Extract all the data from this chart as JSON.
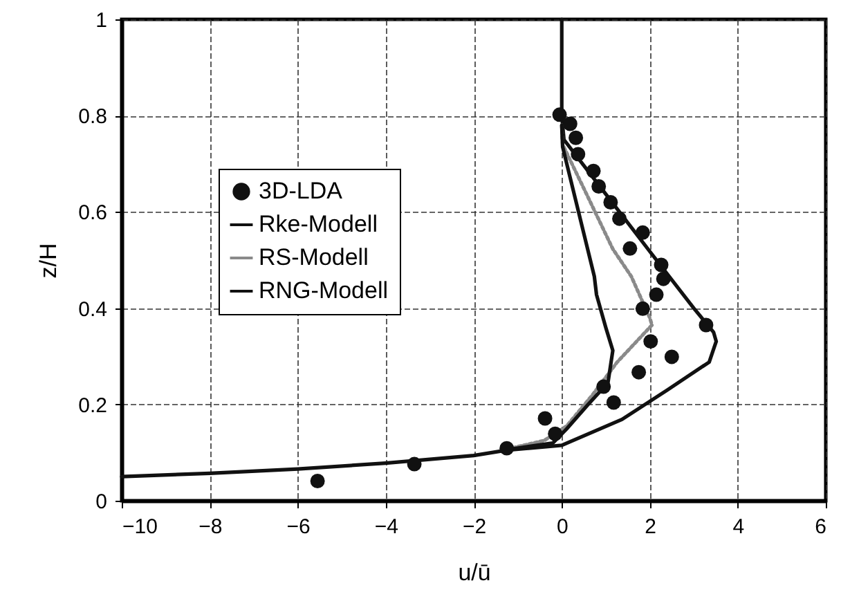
{
  "chart_data": {
    "type": "line",
    "xlabel": "u/ū",
    "ylabel": "z/H",
    "xlim": [
      -10,
      6
    ],
    "xticks": [
      -10,
      -8,
      -6,
      -4,
      -2,
      0,
      2,
      4,
      6
    ],
    "ylim": [
      0,
      1
    ],
    "yticks": [
      0,
      0.2,
      0.4,
      0.6,
      0.8,
      1
    ],
    "grid": true,
    "legend": "center left",
    "series": [
      {
        "name": "3D-LDA",
        "type": "scatter",
        "marker": "circle",
        "color": "#111111",
        "x": [
          -5.55,
          -3.35,
          -1.25,
          -0.38,
          -0.15,
          0.95,
          1.18,
          1.75,
          2.02,
          2.5,
          3.28,
          1.84,
          2.15,
          2.31,
          2.26,
          1.55,
          1.84,
          1.31,
          1.11,
          0.84,
          0.72,
          0.37,
          0.32,
          0.19,
          -0.05
        ],
        "values": [
          0.041,
          0.076,
          0.109,
          0.171,
          0.139,
          0.237,
          0.204,
          0.267,
          0.331,
          0.299,
          0.365,
          0.399,
          0.428,
          0.461,
          0.49,
          0.524,
          0.557,
          0.586,
          0.62,
          0.653,
          0.685,
          0.72,
          0.754,
          0.783,
          0.802
        ]
      },
      {
        "name": "Rke-Modell",
        "line_style": "solid",
        "color": "#111111",
        "x": [
          0,
          0,
          0.05,
          1.0,
          2.0,
          3.0,
          3.45,
          3.51,
          3.35,
          2.4,
          1.37,
          0.0,
          -1.25,
          -2,
          -4,
          -6,
          -8,
          -10
        ],
        "values": [
          1,
          0.8,
          0.75,
          0.637,
          0.518,
          0.4,
          0.35,
          0.331,
          0.288,
          0.23,
          0.169,
          0.115,
          0.105,
          0.094,
          0.078,
          0.066,
          0.057,
          0.05
        ]
      },
      {
        "name": "RS-Modell",
        "line_style": "dotted",
        "color": "#8a8a8a",
        "x": [
          0,
          0.02,
          0.6,
          1.16,
          1.58,
          2.0,
          2.05,
          1.26,
          0.7,
          0.11,
          -0.4,
          -1.25
        ],
        "values": [
          0.78,
          0.74,
          0.63,
          0.523,
          0.466,
          0.38,
          0.365,
          0.288,
          0.22,
          0.155,
          0.125,
          0.107
        ]
      },
      {
        "name": "RNG-Modell",
        "line_style": "solid",
        "color": "#111111",
        "x": [
          0,
          0.02,
          0.74,
          0.79,
          1.0,
          1.16,
          1.05,
          0.6,
          0.11,
          -0.2,
          -1.25
        ],
        "values": [
          0.78,
          0.735,
          0.466,
          0.428,
          0.36,
          0.312,
          0.245,
          0.2,
          0.149,
          0.12,
          0.106
        ]
      }
    ]
  }
}
